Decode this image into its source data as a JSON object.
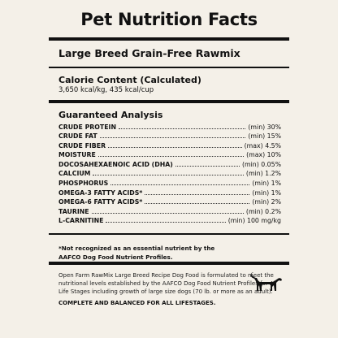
{
  "title": "Pet Nutrition Facts",
  "product": "Large Breed Grain-Free Rawmix",
  "calorie": {
    "heading": "Calorie Content (Calculated)",
    "value": "3,650 kcal/kg, 435 kcal/cup"
  },
  "analysis": {
    "heading": "Guaranteed Analysis",
    "rows": [
      {
        "name": "CRUDE PROTEIN",
        "value": "(min) 30%"
      },
      {
        "name": "CRUDE FAT",
        "value": "(min) 15%"
      },
      {
        "name": "CRUDE FIBER",
        "value": "(max) 4.5%"
      },
      {
        "name": "MOISTURE",
        "value": "(max) 10%"
      },
      {
        "name": "DOCOSAHEXAENOIC ACID (DHA)",
        "value": "(min) 0.05%"
      },
      {
        "name": "CALCIUM",
        "value": "(min) 1.2%"
      },
      {
        "name": "PHOSPHORUS",
        "value": "(min) 1%"
      },
      {
        "name": "OMEGA-3 FATTY ACIDS*",
        "value": "(min) 1%"
      },
      {
        "name": "OMEGA-6 FATTY ACIDS*",
        "value": "(min) 2%"
      },
      {
        "name": "TAURINE",
        "value": "(min) 0.2%"
      },
      {
        "name": "L-CARNITINE",
        "value": "(min) 100 mg/kg"
      }
    ]
  },
  "note": "*Not recognized as an essential nutrient by the AAFCO Dog Food Nutrient Profiles.",
  "statement": "Open Farm RawMix Large Breed Recipe Dog Food is formulated to meet the nutritional levels established by the AAFCO Dog Food Nutrient Profiles for All Life Stages including growth of large size dogs (70 lb. or more as an adult).",
  "footer": "COMPLETE AND BALANCED FOR ALL LIFESTAGES.",
  "icon": "dog-icon",
  "colors": {
    "background": "#f4f0e8",
    "ink": "#111111"
  }
}
